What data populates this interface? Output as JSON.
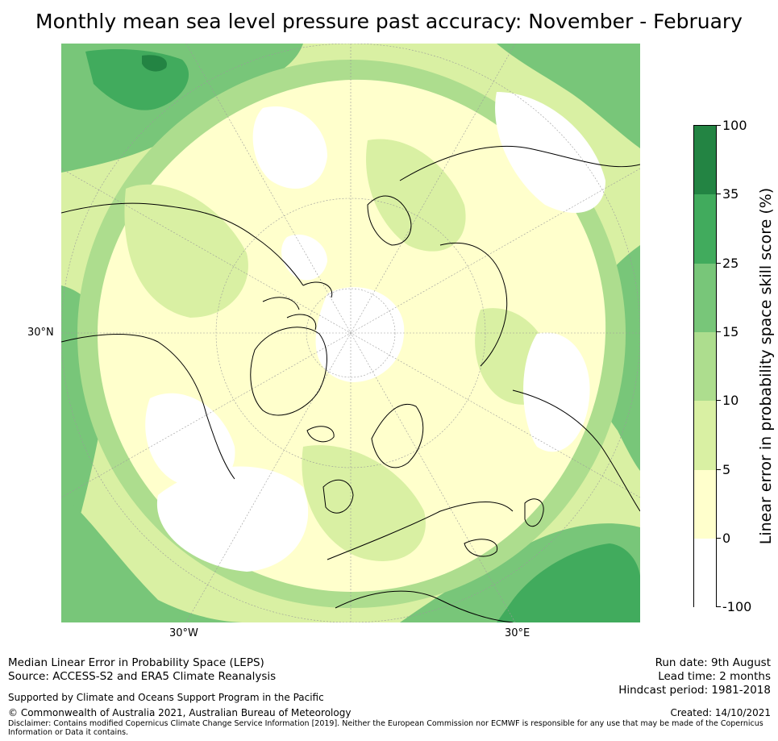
{
  "title": "Monthly mean sea level pressure past accuracy: November - February",
  "map": {
    "lat_label": "30°N",
    "lon_labels": [
      "30°W",
      "30°E"
    ],
    "fill_colors": {
      "white": "#ffffff",
      "pale_yellow": "#ffffcc",
      "light_yellow_green": "#d9f0a3",
      "light_green": "#addd8e",
      "green": "#78c679",
      "mid_green": "#41ab5d",
      "dark_green": "#238443"
    }
  },
  "colorbar": {
    "title": "Linear error in probability space skill score (%)",
    "ticks": [
      "100",
      "35",
      "25",
      "15",
      "10",
      "5",
      "0",
      "-100"
    ],
    "colors": [
      "#238443",
      "#41ab5d",
      "#78c679",
      "#addd8e",
      "#d9f0a3",
      "#ffffcc",
      "#ffffff"
    ]
  },
  "footer": {
    "left_line1": "Median Linear Error in Probability Space (LEPS)",
    "left_line2": "Source: ACCESS-S2 and ERA5 Climate Reanalysis",
    "supported": "Supported by Climate and Oceans Support Program in the Pacific",
    "copyright": "© Commonwealth of Australia 2021, Australian Bureau of Meteorology",
    "disclaimer_line1": "Disclaimer: Contains modified Copernicus Climate Change Service Information [2019]. Neither the European Commission nor ECMWF is responsible for any use that may be made of the Copernicus",
    "disclaimer_line2": "Information or Data it contains.",
    "run_date": "Run date: 9th August",
    "lead_time": "Lead time: 2 months",
    "hindcast": "Hindcast period: 1981-2018",
    "created": "Created: 14/10/2021"
  }
}
